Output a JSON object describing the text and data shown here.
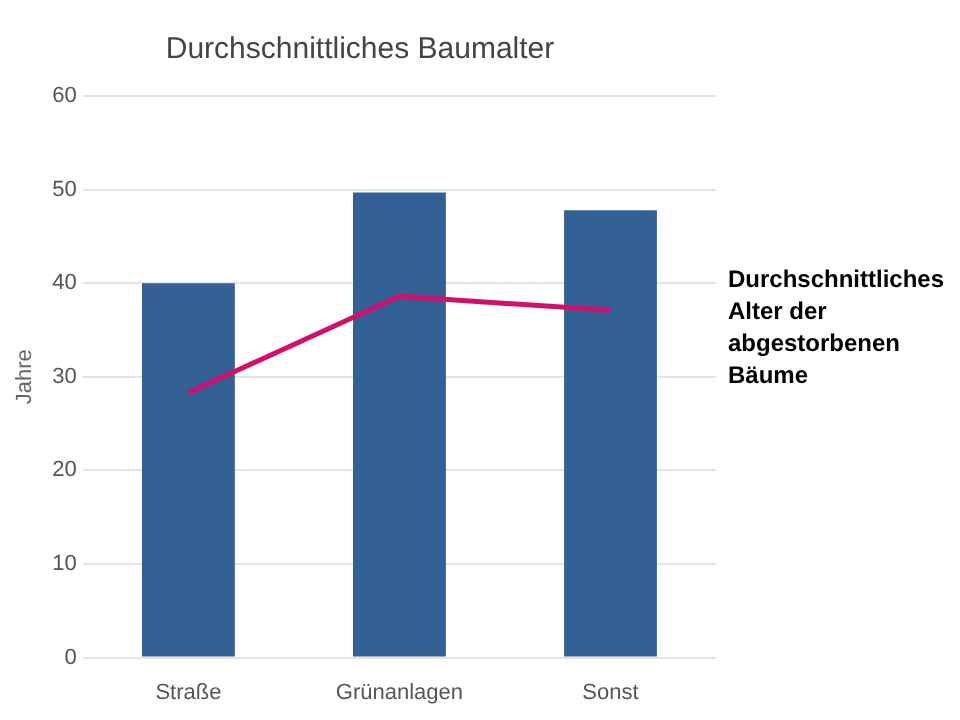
{
  "chart_data": {
    "type": "bar",
    "title": "Durchschnittliches Baumalter",
    "ylabel": "Jahre",
    "categories": [
      "Straße",
      "Grünanlagen",
      "Sonst"
    ],
    "series": [
      {
        "color": "#336195",
        "values": [
          40,
          49.7,
          47.8
        ]
      },
      {
        "type": "line",
        "name": "Durchschnittliches Alter der abgestorbenen Bäume",
        "color": "#d0106a",
        "values": [
          28.3,
          38.6,
          37.1
        ]
      }
    ],
    "ylim": [
      0,
      60
    ],
    "yticks": [
      0,
      10,
      20,
      30,
      40,
      50,
      60
    ],
    "grid": "y",
    "legend": false,
    "marker": "none"
  }
}
